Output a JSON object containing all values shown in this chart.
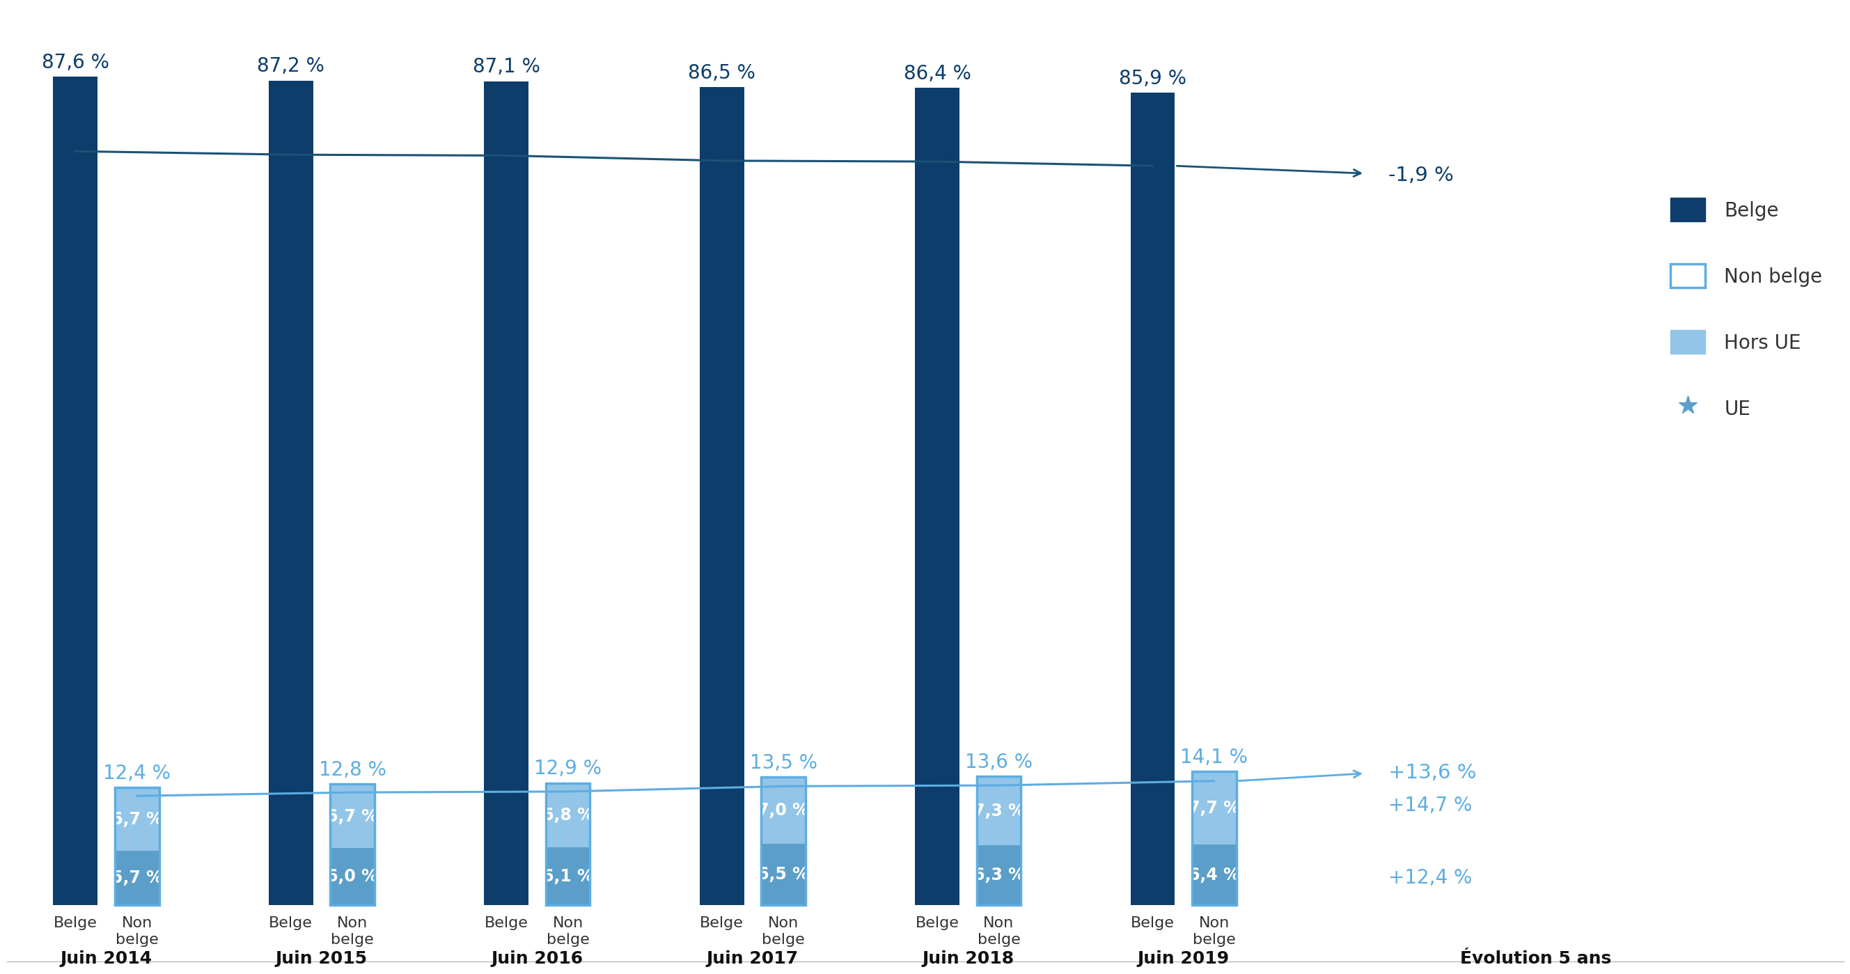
{
  "years": [
    "Juin 2014",
    "Juin 2015",
    "Juin 2016",
    "Juin 2017",
    "Juin 2018",
    "Juin 2019"
  ],
  "belge_values": [
    87.6,
    87.2,
    87.1,
    86.5,
    86.4,
    85.9
  ],
  "non_belge_total": [
    12.4,
    12.8,
    12.9,
    13.5,
    13.6,
    14.1
  ],
  "hors_ue": [
    6.7,
    6.7,
    6.8,
    7.0,
    7.3,
    7.7
  ],
  "ue": [
    5.7,
    6.0,
    6.1,
    6.5,
    6.3,
    6.4
  ],
  "dark_blue": "#0d3d6b",
  "medium_blue": "#5b9ec9",
  "light_blue": "#92c5e8",
  "line_belge_color": "#1a5276",
  "line_nonbelge_color": "#5dade2",
  "evolution_belge": "-1,9 %",
  "evolution_nonbelge": "+13,6 %",
  "evolution_horsue": "+14,7 %",
  "evolution_ue": "+12,4 %",
  "legend_belge": "Belge",
  "legend_nonbelge": "Non belge",
  "legend_horsue": "Hors UE",
  "legend_ue": "UE",
  "evolution_label": "Évolution 5 ans"
}
